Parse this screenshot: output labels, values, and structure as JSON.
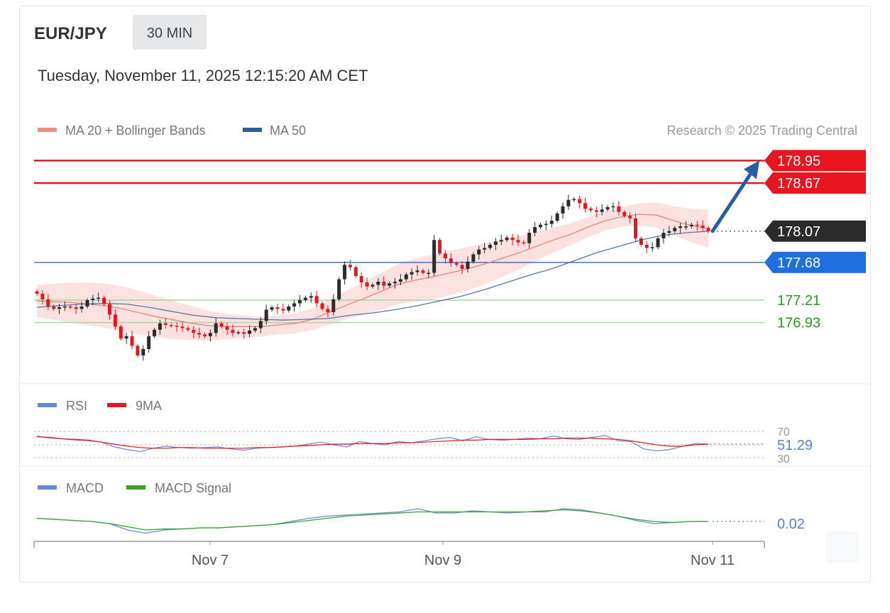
{
  "header": {
    "symbol": "EUR/JPY",
    "timeframe": "30 MIN",
    "datetime": "Tuesday, November 11, 2025 12:15:20 AM CET"
  },
  "legend": {
    "ma20_label": "MA 20 + Bollinger Bands",
    "ma50_label": "MA 50",
    "copyright": "Research © 2025 Trading Central"
  },
  "levels": [
    {
      "value": "178.95",
      "kind": "resistance",
      "color": "#e8141e"
    },
    {
      "value": "178.67",
      "kind": "resistance",
      "color": "#e8141e"
    },
    {
      "value": "178.07",
      "kind": "last",
      "color": "#2b2b2b"
    },
    {
      "value": "177.68",
      "kind": "pivot",
      "color": "#1f6fe0"
    },
    {
      "value": "177.21",
      "kind": "support",
      "color": "#2a9a22"
    },
    {
      "value": "176.93",
      "kind": "support",
      "color": "#2a9a22"
    }
  ],
  "rsi_panel": {
    "legend_rsi": "RSI",
    "legend_ma": "9MA",
    "level_high": "70",
    "level_low": "30",
    "value": "51.29"
  },
  "macd_panel": {
    "legend_macd": "MACD",
    "legend_signal": "MACD Signal",
    "value": "0.02"
  },
  "x_axis": {
    "ticks": [
      "Nov 7",
      "Nov 9",
      "Nov 11"
    ]
  },
  "colors": {
    "up": "#2b2b2b",
    "down": "#e8141e",
    "band": "#f9c9c9",
    "ma20": "#f08080",
    "ma50": "#5577aa",
    "rsi": "#6688e0",
    "rsi_ma": "#e8141e",
    "macd": "#6688e0",
    "signal": "#3aa02a",
    "arrow": "#2a5ca8"
  },
  "chart_data": {
    "type": "candlestick",
    "title": "EUR/JPY",
    "timeframe": "30 MIN",
    "x_ticks": [
      "Nov 7",
      "Nov 9",
      "Nov 11"
    ],
    "y_range_approx": [
      176.45,
      179.05
    ],
    "close_approx": [
      177.29,
      177.22,
      177.13,
      177.1,
      177.12,
      177.13,
      177.12,
      177.1,
      177.13,
      177.21,
      177.23,
      177.24,
      177.16,
      177.03,
      176.88,
      176.73,
      176.76,
      176.64,
      176.52,
      176.6,
      176.76,
      176.84,
      176.92,
      176.9,
      176.89,
      176.88,
      176.86,
      176.84,
      176.8,
      176.78,
      176.76,
      176.8,
      176.92,
      176.88,
      176.84,
      176.8,
      176.81,
      176.79,
      176.83,
      176.86,
      176.95,
      177.09,
      177.12,
      177.1,
      177.08,
      177.13,
      177.17,
      177.21,
      177.24,
      177.26,
      177.17,
      177.1,
      177.06,
      177.22,
      177.47,
      177.65,
      177.62,
      177.51,
      177.43,
      177.38,
      177.4,
      177.44,
      177.39,
      177.42,
      177.44,
      177.47,
      177.53,
      177.56,
      177.58,
      177.55,
      177.55,
      177.96,
      177.79,
      177.73,
      177.67,
      177.65,
      177.6,
      177.69,
      177.78,
      177.84,
      177.86,
      177.9,
      177.94,
      177.96,
      177.99,
      177.96,
      177.93,
      177.92,
      178.05,
      178.12,
      178.15,
      178.16,
      178.2,
      178.29,
      178.38,
      178.46,
      178.47,
      178.42,
      178.35,
      178.33,
      178.31,
      178.34,
      178.37,
      178.38,
      178.31,
      178.26,
      178.23,
      177.98,
      177.9,
      177.86,
      177.87,
      177.98,
      178.05,
      178.07,
      178.11,
      178.13,
      178.13,
      178.15,
      178.14,
      178.11,
      178.07
    ],
    "ma20_approx": [
      177.2,
      177.19,
      177.18,
      177.16,
      177.14,
      177.1,
      177.05,
      177.0,
      176.96,
      176.92,
      176.89,
      176.88,
      176.88,
      176.88,
      176.9,
      176.92,
      176.97,
      177.06,
      177.15,
      177.23,
      177.32,
      177.41,
      177.46,
      177.5,
      177.55,
      177.6,
      177.66,
      177.73,
      177.8,
      177.88,
      177.96,
      178.03,
      178.12,
      178.2,
      178.25,
      178.28,
      178.27,
      178.2,
      178.14,
      178.1
    ],
    "ma50_approx": [
      177.12,
      177.14,
      177.16,
      177.17,
      177.16,
      177.12,
      177.07,
      177.02,
      176.99,
      176.98,
      176.97,
      176.96,
      176.97,
      176.98,
      177.02,
      177.05,
      177.09,
      177.14,
      177.2,
      177.26,
      177.34,
      177.43,
      177.52,
      177.6,
      177.7,
      177.8,
      177.88,
      177.96,
      178.02,
      178.05,
      178.07
    ],
    "projection": {
      "from": 178.07,
      "to": 178.95
    },
    "levels": {
      "resistance": [
        178.95,
        178.67
      ],
      "last": 178.07,
      "pivot": 177.68,
      "support": [
        177.21,
        176.93
      ]
    },
    "rsi": {
      "last": 51.29,
      "levels": [
        70,
        30
      ],
      "values": [
        63,
        60,
        59,
        57,
        56,
        54,
        47,
        43,
        40,
        45,
        48,
        46,
        45,
        46,
        47,
        44,
        42,
        45,
        46,
        47,
        48,
        51,
        54,
        50,
        47,
        55,
        52,
        50,
        55,
        53,
        56,
        59,
        61,
        56,
        62,
        58,
        57,
        58,
        60,
        59,
        63,
        59,
        58,
        61,
        64,
        56,
        55,
        44,
        41,
        43,
        48,
        52,
        51
      ],
      "ma9": [
        62,
        61,
        59,
        58,
        57,
        54,
        51,
        48,
        46,
        45,
        45,
        46,
        46,
        45,
        45,
        45,
        45,
        46,
        46,
        47,
        48,
        49,
        50,
        51,
        51,
        52,
        52,
        52,
        53,
        53,
        54,
        55,
        56,
        57,
        57,
        58,
        58,
        58,
        58,
        59,
        59,
        60,
        60,
        60,
        59,
        58,
        56,
        53,
        50,
        48,
        48,
        50,
        51
      ]
    },
    "macd": {
      "last": 0.02,
      "macd": [
        0.05,
        0.04,
        0.03,
        0.02,
        0.0,
        -0.06,
        -0.09,
        -0.06,
        -0.05,
        -0.04,
        -0.04,
        -0.03,
        -0.02,
        -0.01,
        0.02,
        0.05,
        0.07,
        0.08,
        0.09,
        0.1,
        0.11,
        0.14,
        0.1,
        0.1,
        0.12,
        0.11,
        0.1,
        0.11,
        0.11,
        0.14,
        0.13,
        0.1,
        0.07,
        0.03,
        0.0,
        0.01,
        0.02,
        0.02
      ],
      "signal": [
        0.05,
        0.04,
        0.03,
        0.02,
        0.0,
        -0.03,
        -0.06,
        -0.05,
        -0.05,
        -0.04,
        -0.04,
        -0.03,
        -0.02,
        -0.01,
        0.01,
        0.03,
        0.05,
        0.07,
        0.08,
        0.09,
        0.1,
        0.11,
        0.11,
        0.11,
        0.11,
        0.11,
        0.11,
        0.11,
        0.12,
        0.13,
        0.12,
        0.1,
        0.07,
        0.04,
        0.02,
        0.01,
        0.02,
        0.02
      ]
    }
  }
}
